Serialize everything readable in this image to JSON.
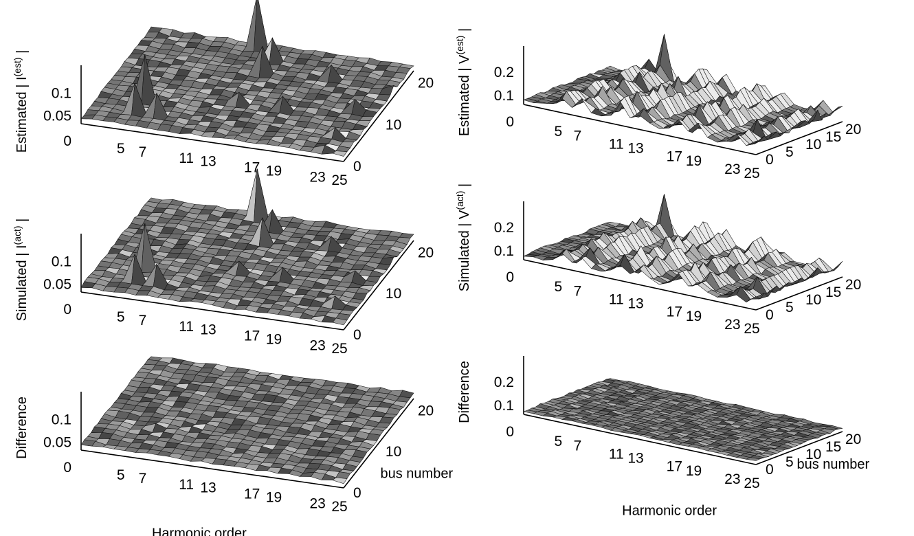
{
  "chart_data": [
    {
      "id": "current-estimated",
      "type": "surface3d",
      "zlabel": {
        "base": "Estimated | I",
        "sup": "(est)",
        "tail": " |"
      },
      "xlabel": "",
      "ylabel": "",
      "x_ticks": [
        "5",
        "7",
        "11",
        "13",
        "17",
        "19",
        "23",
        "25"
      ],
      "y_ticks": [
        "0",
        "10",
        "20"
      ],
      "z_ticks": [
        "0",
        "0.05",
        "0.1"
      ],
      "zlim": [
        0,
        0.13
      ],
      "grid": {
        "harmonic_cols": 25,
        "bus_rows": 22
      },
      "base_level": 0.012,
      "peaks": [
        {
          "harmonic": 5,
          "bus": 6,
          "value": 0.11
        },
        {
          "harmonic": 5,
          "bus": 3,
          "value": 0.075
        },
        {
          "harmonic": 7,
          "bus": 3,
          "value": 0.06
        },
        {
          "harmonic": 11,
          "bus": 20,
          "value": 0.13
        },
        {
          "harmonic": 13,
          "bus": 15,
          "value": 0.07
        },
        {
          "harmonic": 13,
          "bus": 18,
          "value": 0.06
        },
        {
          "harmonic": 13,
          "bus": 8,
          "value": 0.035
        },
        {
          "harmonic": 17,
          "bus": 8,
          "value": 0.04
        },
        {
          "harmonic": 19,
          "bus": 16,
          "value": 0.04
        },
        {
          "harmonic": 23,
          "bus": 10,
          "value": 0.035
        },
        {
          "harmonic": 23,
          "bus": 4,
          "value": 0.03
        },
        {
          "harmonic": 25,
          "bus": 15,
          "value": 0.025
        },
        {
          "harmonic": 23,
          "bus": 1,
          "value": 0.02
        }
      ]
    },
    {
      "id": "voltage-estimated",
      "type": "surface3d",
      "zlabel": {
        "base": "Estimated | V",
        "sup": "(est)",
        "tail": " |"
      },
      "xlabel": "",
      "ylabel": "",
      "x_ticks": [
        "5",
        "7",
        "11",
        "13",
        "17",
        "19",
        "23",
        "25"
      ],
      "y_ticks": [
        "0",
        "5",
        "10",
        "15",
        "20"
      ],
      "z_ticks": [
        "0",
        "0.1",
        "0.2"
      ],
      "zlim": [
        0,
        0.25
      ],
      "grid": {
        "harmonic_cols": 25,
        "bus_rows": 22
      },
      "base_level": 0.02,
      "ridges": [
        {
          "harmonic": 5,
          "value": 0.09
        },
        {
          "harmonic": 7,
          "value": 0.1
        },
        {
          "harmonic": 11,
          "value": 0.12
        },
        {
          "harmonic": 13,
          "value": 0.1
        },
        {
          "harmonic": 17,
          "value": 0.11
        },
        {
          "harmonic": 19,
          "value": 0.09
        },
        {
          "harmonic": 23,
          "value": 0.08
        },
        {
          "harmonic": 25,
          "value": 0.07
        }
      ],
      "peaks": [
        {
          "harmonic": 7,
          "bus": 20,
          "value": 0.22
        },
        {
          "harmonic": 23,
          "bus": 5,
          "value": 0.1
        },
        {
          "harmonic": 25,
          "bus": 15,
          "value": 0.09
        }
      ]
    },
    {
      "id": "current-simulated",
      "type": "surface3d",
      "zlabel": {
        "base": "Simulated | I",
        "sup": "(act)",
        "tail": " |"
      },
      "xlabel": "",
      "ylabel": "",
      "x_ticks": [
        "5",
        "7",
        "11",
        "13",
        "17",
        "19",
        "23",
        "25"
      ],
      "y_ticks": [
        "0",
        "10",
        "20"
      ],
      "z_ticks": [
        "0",
        "0.05",
        "0.1"
      ],
      "zlim": [
        0,
        0.13
      ],
      "grid": {
        "harmonic_cols": 25,
        "bus_rows": 22
      },
      "base_level": 0.012,
      "peaks": [
        {
          "harmonic": 5,
          "bus": 6,
          "value": 0.11
        },
        {
          "harmonic": 5,
          "bus": 3,
          "value": 0.07
        },
        {
          "harmonic": 7,
          "bus": 3,
          "value": 0.055
        },
        {
          "harmonic": 11,
          "bus": 20,
          "value": 0.12
        },
        {
          "harmonic": 13,
          "bus": 15,
          "value": 0.065
        },
        {
          "harmonic": 13,
          "bus": 18,
          "value": 0.055
        },
        {
          "harmonic": 13,
          "bus": 8,
          "value": 0.035
        },
        {
          "harmonic": 17,
          "bus": 8,
          "value": 0.035
        },
        {
          "harmonic": 19,
          "bus": 16,
          "value": 0.035
        },
        {
          "harmonic": 23,
          "bus": 10,
          "value": 0.03
        },
        {
          "harmonic": 23,
          "bus": 4,
          "value": 0.03
        },
        {
          "harmonic": 25,
          "bus": 15,
          "value": 0.02
        }
      ]
    },
    {
      "id": "voltage-simulated",
      "type": "surface3d",
      "zlabel": {
        "base": "Simulated | V",
        "sup": "(act)",
        "tail": " |"
      },
      "xlabel": "",
      "ylabel": "",
      "x_ticks": [
        "5",
        "7",
        "11",
        "13",
        "17",
        "19",
        "23",
        "25"
      ],
      "y_ticks": [
        "0",
        "5",
        "10",
        "15",
        "20"
      ],
      "z_ticks": [
        "0",
        "0.1",
        "0.2"
      ],
      "zlim": [
        0,
        0.25
      ],
      "grid": {
        "harmonic_cols": 25,
        "bus_rows": 22
      },
      "base_level": 0.02,
      "ridges": [
        {
          "harmonic": 5,
          "value": 0.09
        },
        {
          "harmonic": 7,
          "value": 0.1
        },
        {
          "harmonic": 11,
          "value": 0.12
        },
        {
          "harmonic": 13,
          "value": 0.1
        },
        {
          "harmonic": 17,
          "value": 0.11
        },
        {
          "harmonic": 19,
          "value": 0.09
        },
        {
          "harmonic": 23,
          "value": 0.08
        },
        {
          "harmonic": 25,
          "value": 0.07
        }
      ],
      "peaks": [
        {
          "harmonic": 7,
          "bus": 20,
          "value": 0.2
        },
        {
          "harmonic": 23,
          "bus": 5,
          "value": 0.09
        },
        {
          "harmonic": 25,
          "bus": 15,
          "value": 0.08
        }
      ]
    },
    {
      "id": "current-difference",
      "type": "surface3d",
      "zlabel": {
        "base": "Difference",
        "sup": "",
        "tail": ""
      },
      "xlabel": "Harmonic order",
      "ylabel": "bus number",
      "x_ticks": [
        "5",
        "7",
        "11",
        "13",
        "17",
        "19",
        "23",
        "25"
      ],
      "y_ticks": [
        "0",
        "10",
        "20"
      ],
      "z_ticks": [
        "0",
        "0.05",
        "0.1"
      ],
      "zlim": [
        0,
        0.13
      ],
      "grid": {
        "harmonic_cols": 25,
        "bus_rows": 22
      },
      "base_level": 0.012,
      "peaks": [
        {
          "harmonic": 6,
          "bus": 6,
          "value": 0.02
        }
      ]
    },
    {
      "id": "voltage-difference",
      "type": "surface3d",
      "zlabel": {
        "base": "Difference",
        "sup": "",
        "tail": ""
      },
      "xlabel": "Harmonic order",
      "ylabel": "bus number",
      "x_ticks": [
        "5",
        "7",
        "11",
        "13",
        "17",
        "19",
        "23",
        "25"
      ],
      "y_ticks": [
        "0",
        "5",
        "10",
        "15",
        "20"
      ],
      "z_ticks": [
        "0",
        "0.1",
        "0.2"
      ],
      "zlim": [
        0,
        0.25
      ],
      "grid": {
        "harmonic_cols": 25,
        "bus_rows": 22
      },
      "base_level": 0.015,
      "peaks": []
    }
  ]
}
